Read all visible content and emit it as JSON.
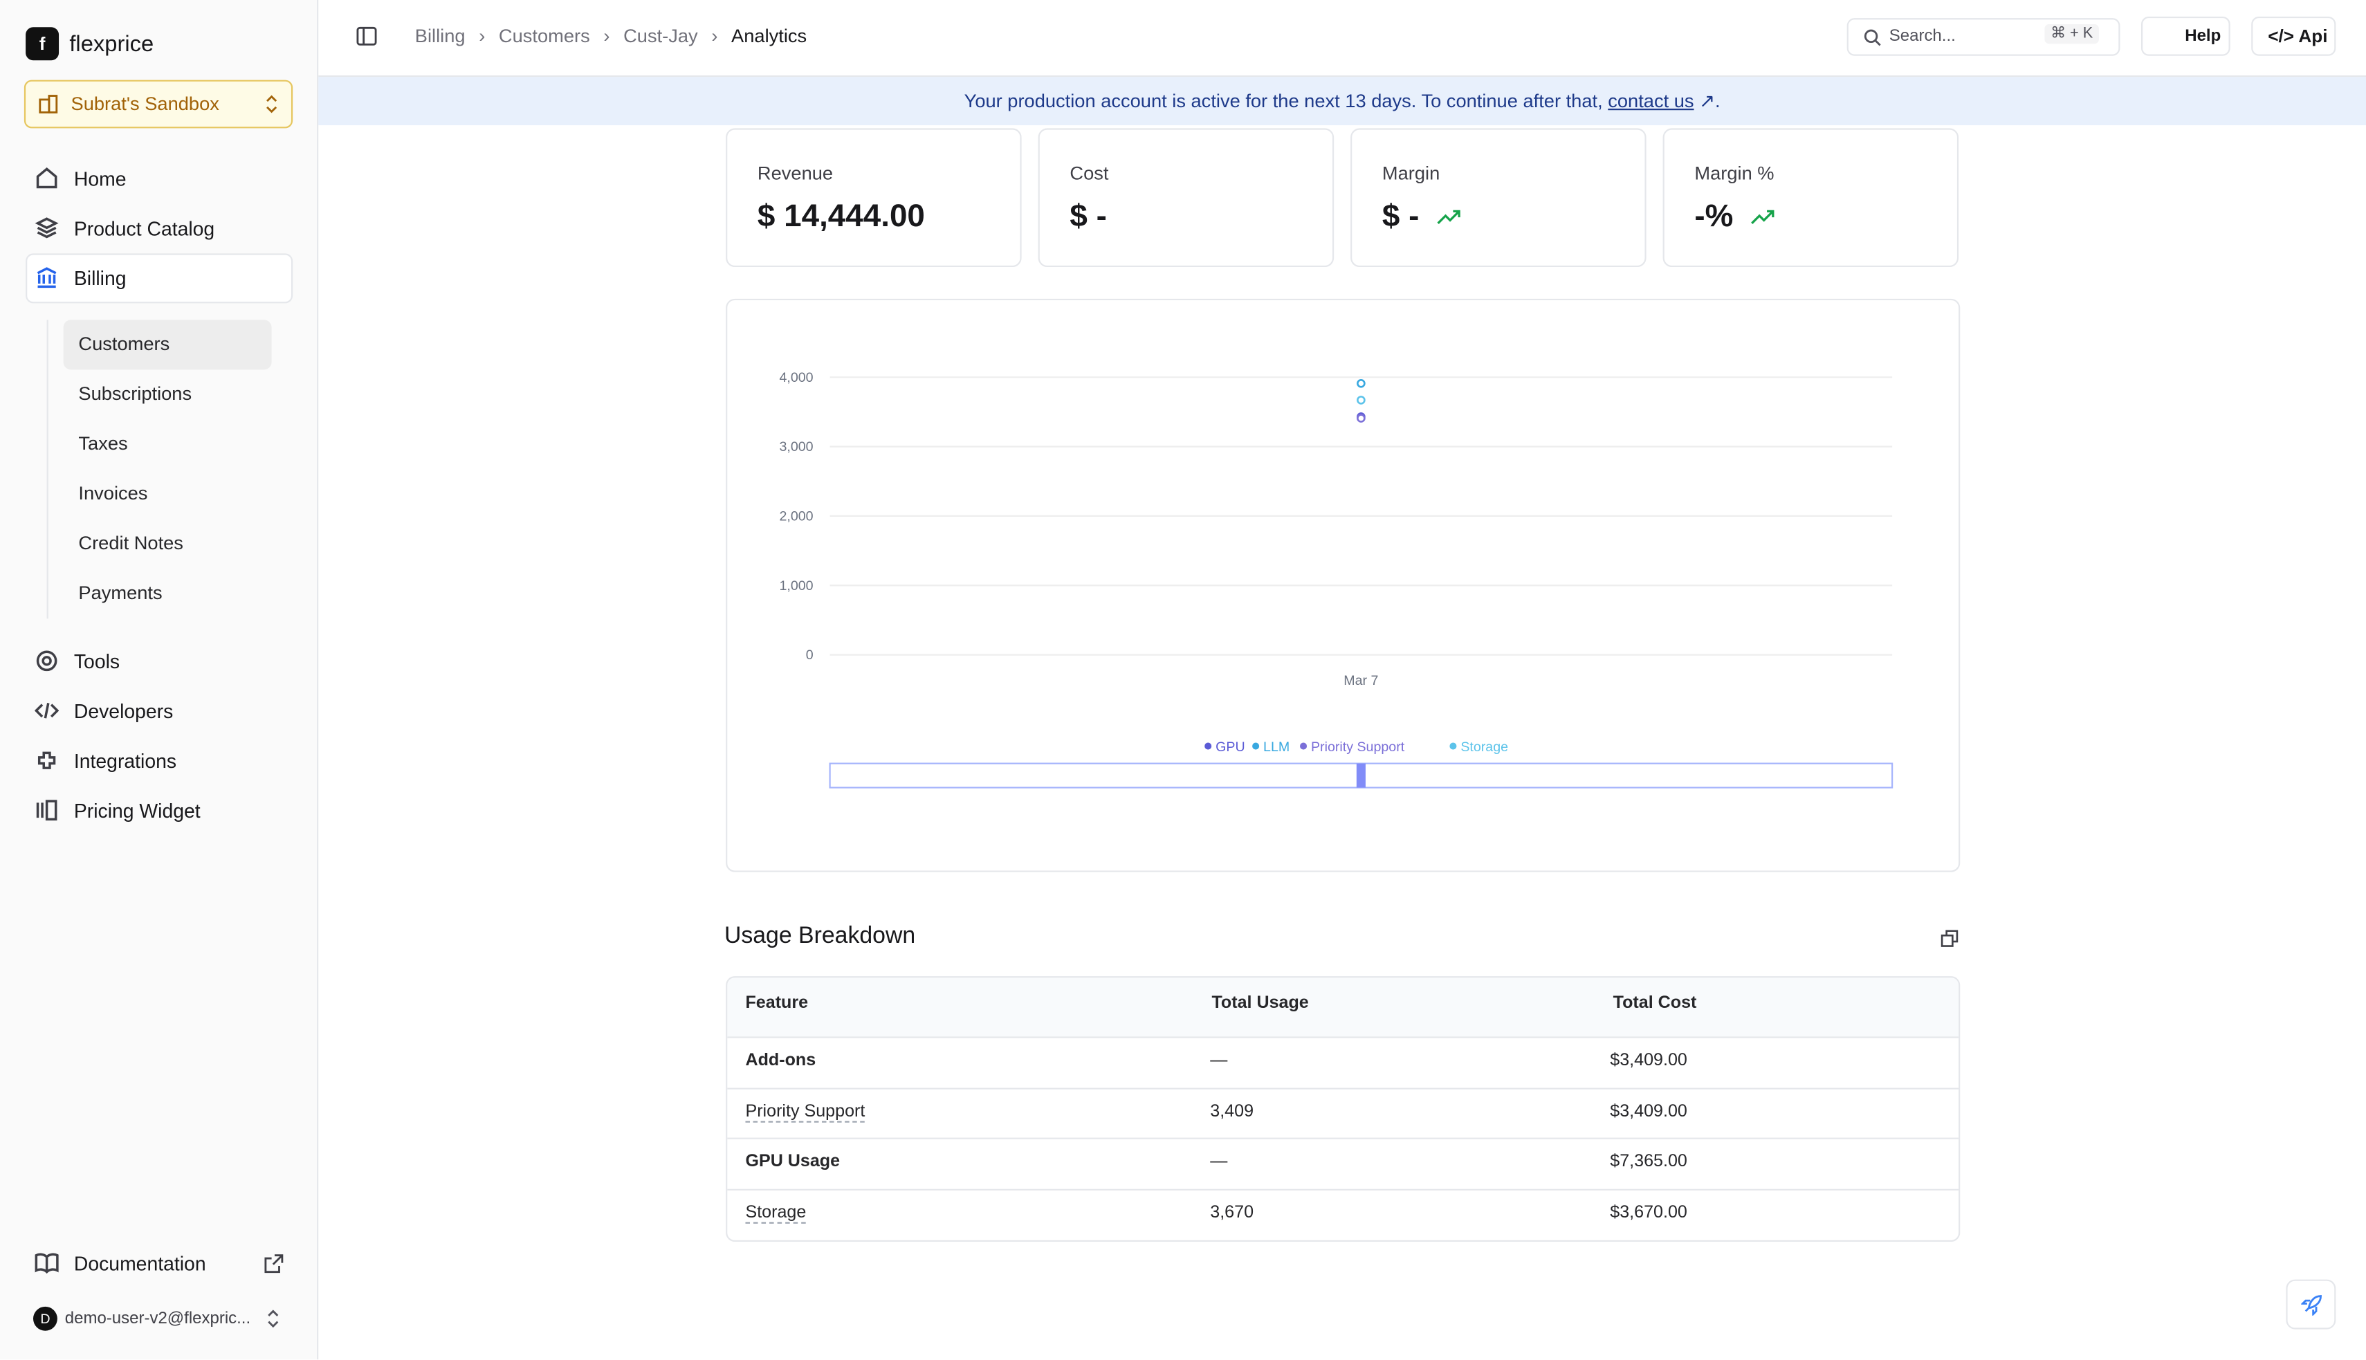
{
  "sidebar": {
    "brand": "flexprice",
    "logo_letter": "f",
    "workspace": "Subrat's Sandbox",
    "nav": [
      "Home",
      "Product Catalog",
      "Billing"
    ],
    "billing_items": [
      "Customers",
      "Subscriptions",
      "Taxes",
      "Invoices",
      "Credit Notes",
      "Payments"
    ],
    "nav_bottom": [
      "Tools",
      "Developers",
      "Integrations",
      "Pricing Widget"
    ],
    "documentation": "Documentation",
    "user_initial": "D",
    "user": "demo-user-v2@flexpric..."
  },
  "header": {
    "breadcrumb": [
      "Billing",
      "Customers",
      "Cust-Jay",
      "Analytics"
    ],
    "search": "Search...",
    "shortcut": "⌘ + K",
    "help": "Help",
    "api": "Api"
  },
  "banner": {
    "text": "Your production account is active for the next 13 days. To continue after that,",
    "link": "contact us",
    "end": "."
  },
  "stats": [
    {
      "label": "Revenue",
      "value": "$ 14,444.00"
    },
    {
      "label": "Cost",
      "value": "$ -"
    },
    {
      "label": "Margin",
      "value": "$ -"
    },
    {
      "label": "Margin %",
      "value": "-%"
    }
  ],
  "chart_data": {
    "type": "scatter",
    "categories": [
      "Mar 7"
    ],
    "ylim": [
      0,
      4000
    ],
    "yticks": [
      0,
      {
        "value": 1000,
        "label": "1,000"
      },
      {
        "value": 2000,
        "label": "2,000"
      },
      {
        "value": 3000,
        "label": "3,000"
      },
      {
        "value": 4000,
        "label": "4,000"
      }
    ],
    "grid": true,
    "series": [
      {
        "name": "GPU",
        "color": "#5b5bd6",
        "values": [
          3430
        ]
      },
      {
        "name": "LLM",
        "color": "#38a8e0",
        "values": [
          3910
        ]
      },
      {
        "name": "Priority Support",
        "color": "#7b6fd8",
        "values": [
          3409
        ]
      },
      {
        "name": "Storage",
        "color": "#5cc3ea",
        "values": [
          3670
        ]
      }
    ]
  },
  "usage_breakdown": {
    "title": "Usage Breakdown",
    "columns": [
      "Feature",
      "Total Usage",
      "Total Cost"
    ],
    "rows": [
      [
        "Add-ons",
        "—",
        "$3,409.00"
      ],
      [
        "Priority Support",
        "3,409",
        "$3,409.00"
      ],
      [
        "GPU Usage",
        "—",
        "$7,365.00"
      ],
      [
        "Storage",
        "3,670",
        "$3,670.00"
      ]
    ]
  }
}
